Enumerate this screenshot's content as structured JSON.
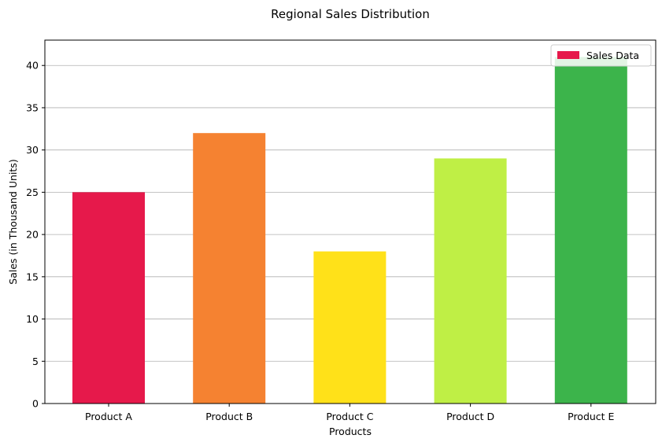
{
  "chart_data": {
    "type": "bar",
    "title": "Regional Sales Distribution",
    "xlabel": "Products",
    "ylabel": "Sales (in Thousand Units)",
    "categories": [
      "Product A",
      "Product B",
      "Product C",
      "Product D",
      "Product E"
    ],
    "values": [
      25,
      32,
      18,
      29,
      41
    ],
    "colors": [
      "#e6194b",
      "#f58231",
      "#ffe119",
      "#bfef45",
      "#3cb44b"
    ],
    "ylim": [
      0,
      43
    ],
    "yticks": [
      0,
      5,
      10,
      15,
      20,
      25,
      30,
      35,
      40
    ],
    "grid": "y",
    "legend": {
      "placement": "top-right",
      "entries": [
        {
          "label": "Sales Data",
          "color": "#e6194b"
        }
      ]
    }
  }
}
